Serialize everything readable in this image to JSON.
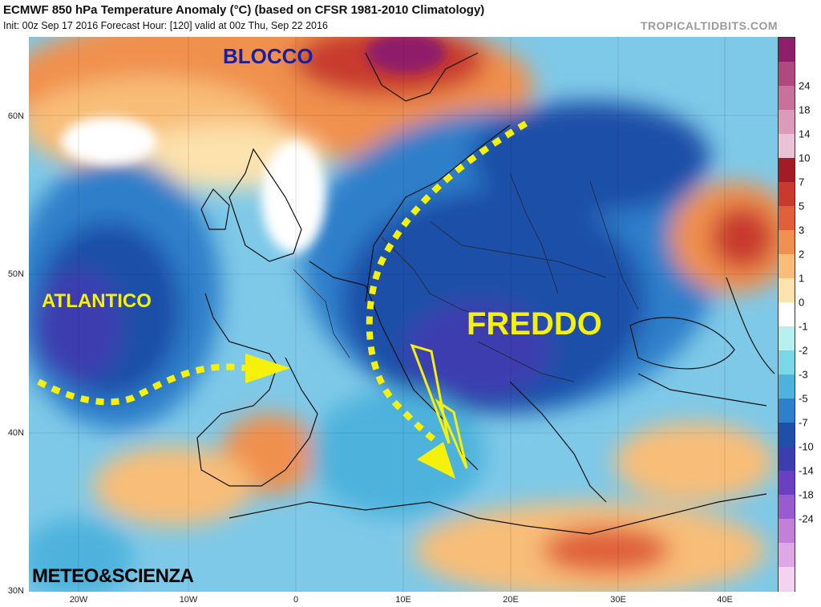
{
  "header": {
    "title": "ECMWF 850 hPa Temperature Anomaly (°C) (based on CFSR 1981-2010 Climatology)",
    "subtitle": "Init: 00z Sep 17 2016   Forecast Hour: [120]   valid at 00z Thu, Sep 22 2016",
    "watermark": "TROPICALTIDBITS.COM"
  },
  "map": {
    "latitude_labels": [
      "60N",
      "50N",
      "40N",
      "30N"
    ],
    "longitude_labels": [
      "20W",
      "10W",
      "0",
      "10E",
      "20E",
      "30E",
      "40E"
    ],
    "annotations": {
      "blocco": "BLOCCO",
      "atlantico": "ATLANTICO",
      "freddo": "FREDDO",
      "credit": "METEO&SCIENZA"
    },
    "arrow_color": "#f5f10a"
  },
  "colorbar": {
    "labels": [
      "24",
      "18",
      "14",
      "10",
      "7",
      "5",
      "3",
      "2",
      "1",
      "0",
      "-1",
      "-2",
      "-3",
      "-5",
      "-7",
      "-10",
      "-14",
      "-18",
      "-24"
    ],
    "colors": [
      "#8e1f6a",
      "#b0497f",
      "#c8729b",
      "#dc9cb9",
      "#e9c3d5",
      "#a11c24",
      "#c83a2e",
      "#e0603b",
      "#f0904e",
      "#f8bd78",
      "#fce2ad",
      "#ffffff",
      "#b6f0ee",
      "#7ad7e8",
      "#4eb3dc",
      "#2f7fca",
      "#1f4fa8",
      "#3d3cb0",
      "#6a3fc2",
      "#9b5bd0",
      "#c47fd9",
      "#e0a7e6",
      "#f4d3f2"
    ]
  }
}
